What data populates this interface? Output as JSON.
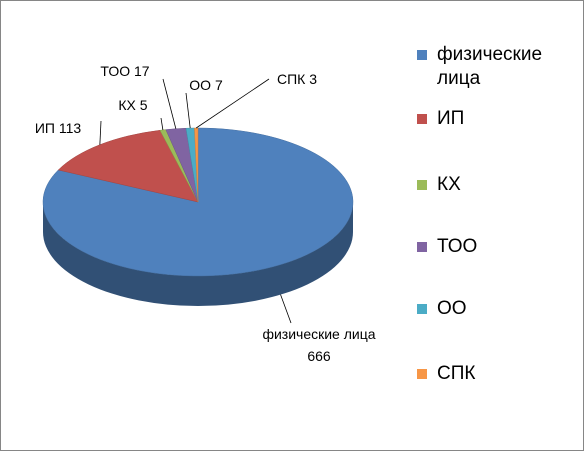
{
  "chart_data": {
    "type": "pie",
    "categories": [
      "физические лица",
      "ИП",
      "КХ",
      "ТОО",
      "ОО",
      "СПК"
    ],
    "values": [
      666,
      113,
      5,
      17,
      7,
      3
    ],
    "colors": [
      "#4f81bd",
      "#c0504d",
      "#9bbb59",
      "#8064a2",
      "#4bacc6",
      "#f79646"
    ],
    "legend": "right"
  }
}
